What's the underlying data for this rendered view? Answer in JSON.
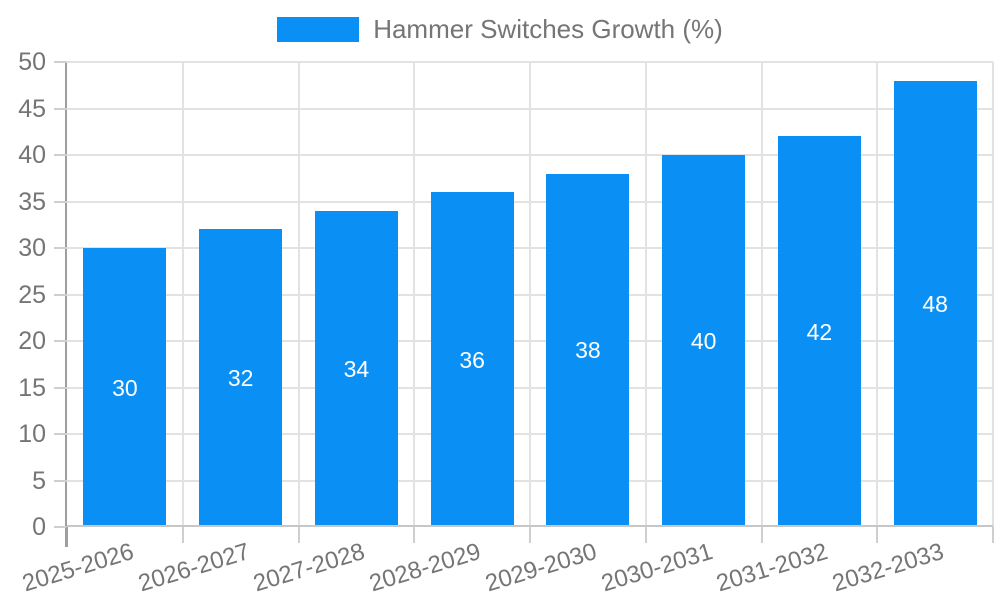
{
  "legend": {
    "label": "Hammer Switches Growth (%)"
  },
  "chart_data": {
    "type": "bar",
    "title": "Hammer Switches Growth (%)",
    "categories": [
      "2025-2026",
      "2026-2027",
      "2027-2028",
      "2028-2029",
      "2029-2030",
      "2030-2031",
      "2031-2032",
      "2032-2033"
    ],
    "series": [
      {
        "name": "Hammer Switches Growth (%)",
        "values": [
          30,
          32,
          34,
          36,
          38,
          40,
          42,
          48
        ]
      }
    ],
    "bar_value_labels": [
      "30",
      "32",
      "34",
      "36",
      "38",
      "40",
      "42",
      "48"
    ],
    "xlabel": "",
    "ylabel": "",
    "ylim": [
      0,
      50
    ],
    "ytick_step": 5,
    "yticks": [
      "0",
      "5",
      "10",
      "15",
      "20",
      "25",
      "30",
      "35",
      "40",
      "45",
      "50"
    ],
    "grid": true,
    "legend_position": "top-center",
    "x_tick_rotation_deg": -17
  },
  "colors": {
    "bar": "#0a90f5",
    "axis_text": "#757575",
    "grid": "#e2e2e2",
    "axis_line": "#9e9e9e",
    "baseline": "#c7c7c7",
    "tick": "#cfcfcf",
    "value_label": "#ffffff",
    "background": "#ffffff"
  }
}
